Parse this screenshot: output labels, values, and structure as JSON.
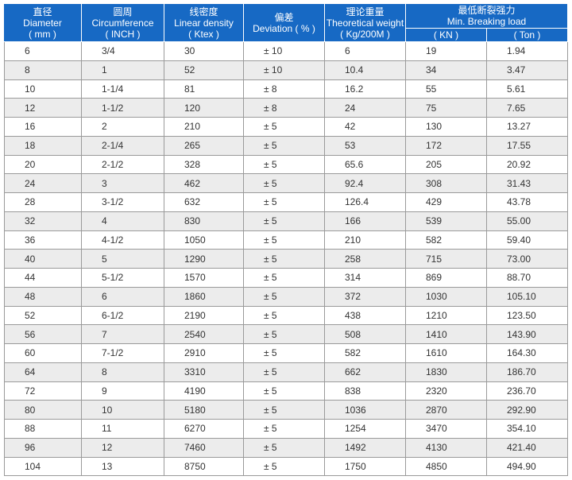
{
  "table": {
    "header": {
      "columns": [
        {
          "lines": [
            "直径",
            "Diameter",
            "( mm )"
          ]
        },
        {
          "lines": [
            "圆周",
            "Circumference",
            "( INCH )"
          ]
        },
        {
          "lines": [
            "线密度",
            "Linear density",
            "( Ktex )"
          ]
        },
        {
          "lines": [
            "偏差",
            "Deviation ( % )"
          ]
        },
        {
          "lines": [
            "理论重量",
            "Theoretical weight",
            "( Kg/200M )"
          ]
        }
      ],
      "group": {
        "lines": [
          "最低断裂强力",
          "Min. Breaking load"
        ],
        "subcolumns": [
          "( KN )",
          "( Ton )"
        ]
      }
    },
    "rows": [
      [
        "6",
        "3/4",
        "30",
        "± 10",
        "6",
        "19",
        "1.94"
      ],
      [
        "8",
        "1",
        "52",
        "± 10",
        "10.4",
        "34",
        "3.47"
      ],
      [
        "10",
        "1-1/4",
        "81",
        "± 8",
        "16.2",
        "55",
        "5.61"
      ],
      [
        "12",
        "1-1/2",
        "120",
        "± 8",
        "24",
        "75",
        "7.65"
      ],
      [
        "16",
        "2",
        "210",
        "± 5",
        "42",
        "130",
        "13.27"
      ],
      [
        "18",
        "2-1/4",
        "265",
        "± 5",
        "53",
        "172",
        "17.55"
      ],
      [
        "20",
        "2-1/2",
        "328",
        "± 5",
        "65.6",
        "205",
        "20.92"
      ],
      [
        "24",
        "3",
        "462",
        "± 5",
        "92.4",
        "308",
        "31.43"
      ],
      [
        "28",
        "3-1/2",
        "632",
        "± 5",
        "126.4",
        "429",
        "43.78"
      ],
      [
        "32",
        "4",
        "830",
        "± 5",
        "166",
        "539",
        "55.00"
      ],
      [
        "36",
        "4-1/2",
        "1050",
        "± 5",
        "210",
        "582",
        "59.40"
      ],
      [
        "40",
        "5",
        "1290",
        "± 5",
        "258",
        "715",
        "73.00"
      ],
      [
        "44",
        "5-1/2",
        "1570",
        "± 5",
        "314",
        "869",
        "88.70"
      ],
      [
        "48",
        "6",
        "1860",
        "± 5",
        "372",
        "1030",
        "105.10"
      ],
      [
        "52",
        "6-1/2",
        "2190",
        "± 5",
        "438",
        "1210",
        "123.50"
      ],
      [
        "56",
        "7",
        "2540",
        "± 5",
        "508",
        "1410",
        "143.90"
      ],
      [
        "60",
        "7-1/2",
        "2910",
        "± 5",
        "582",
        "1610",
        "164.30"
      ],
      [
        "64",
        "8",
        "3310",
        "± 5",
        "662",
        "1830",
        "186.70"
      ],
      [
        "72",
        "9",
        "4190",
        "± 5",
        "838",
        "2320",
        "236.70"
      ],
      [
        "80",
        "10",
        "5180",
        "± 5",
        "1036",
        "2870",
        "292.90"
      ],
      [
        "88",
        "11",
        "6270",
        "± 5",
        "1254",
        "3470",
        "354.10"
      ],
      [
        "96",
        "12",
        "7460",
        "± 5",
        "1492",
        "4130",
        "421.40"
      ],
      [
        "104",
        "13",
        "8750",
        "± 5",
        "1750",
        "4850",
        "494.90"
      ]
    ]
  }
}
